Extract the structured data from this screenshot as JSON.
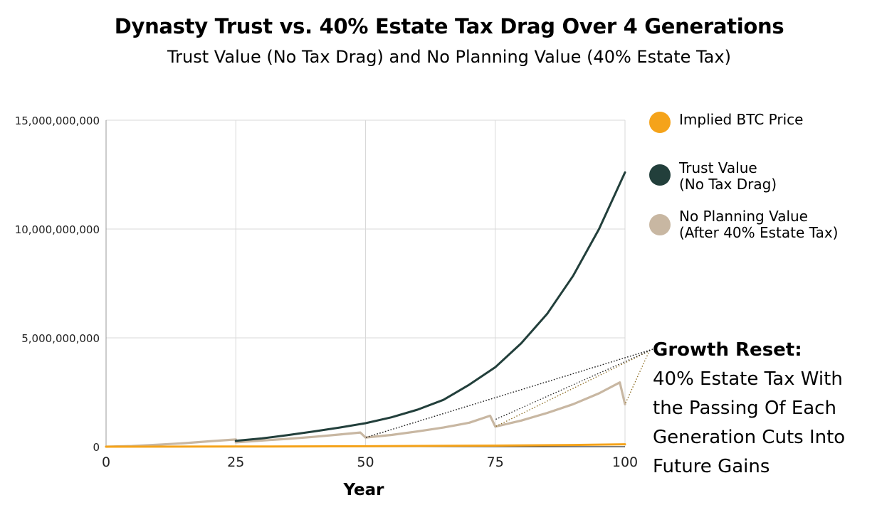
{
  "chart_data": {
    "type": "line",
    "title": "Dynasty Trust vs. 40% Estate Tax Drag Over 4 Generations",
    "subtitle": "Trust Value (No Tax Drag) and No Planning Value (40% Estate Tax)",
    "xlabel": "Year",
    "ylabel": "",
    "xlim": [
      0,
      100
    ],
    "ylim": [
      0,
      15000000000
    ],
    "x_ticks": [
      0,
      25,
      50,
      75,
      100
    ],
    "x_tick_labels": [
      "0",
      "25",
      "50",
      "75",
      "100"
    ],
    "y_ticks": [
      0,
      5000000000,
      10000000000,
      15000000000
    ],
    "y_tick_labels": [
      "0",
      "5,000,000,000",
      "10,000,000,000",
      "15,000,000,000"
    ],
    "grid": true,
    "legend_position": "right",
    "series": [
      {
        "name": "Implied BTC Price",
        "color": "#F5A31A",
        "x": [
          0,
          25,
          50,
          75,
          90,
          100
        ],
        "y": [
          0,
          5000000,
          20000000,
          50000000,
          80000000,
          110000000
        ]
      },
      {
        "name": "Trust Value (No Tax Drag)",
        "color": "#223F3B",
        "x": [
          25,
          30,
          35,
          40,
          45,
          50,
          55,
          60,
          65,
          70,
          75,
          80,
          85,
          90,
          95,
          100
        ],
        "y": [
          270000000,
          380000000,
          530000000,
          700000000,
          880000000,
          1080000000,
          1350000000,
          1700000000,
          2150000000,
          2850000000,
          3650000000,
          4750000000,
          6100000000,
          7850000000,
          10000000000,
          12600000000
        ]
      },
      {
        "name": "No Planning Value (After 40% Estate Tax)",
        "color": "#C8B7A2",
        "x": [
          0,
          5,
          10,
          15,
          20,
          25,
          25.01,
          30,
          35,
          40,
          45,
          49,
          50,
          55,
          60,
          65,
          70,
          74,
          75,
          80,
          85,
          90,
          95,
          99,
          100
        ],
        "y": [
          0,
          30000000,
          90000000,
          160000000,
          250000000,
          330000000,
          200000000,
          280000000,
          360000000,
          450000000,
          560000000,
          650000000,
          420000000,
          540000000,
          700000000,
          880000000,
          1100000000,
          1420000000,
          920000000,
          1200000000,
          1550000000,
          1950000000,
          2450000000,
          2950000000,
          1950000000
        ]
      }
    ],
    "annotations": [
      {
        "label_bold": "Growth Reset:",
        "label_lines": [
          "40% Estate Tax With",
          "the Passing Of Each",
          "Generation Cuts Into",
          "Future Gains"
        ],
        "targets": [
          {
            "x": 50,
            "y": 420000000
          },
          {
            "x": 75,
            "y": 920000000
          },
          {
            "x": 100,
            "y": 1950000000
          }
        ]
      }
    ]
  },
  "legend": {
    "items": [
      {
        "lines": [
          "Implied BTC Price"
        ],
        "color": "#F5A31A"
      },
      {
        "lines": [
          "Trust Value",
          "(No Tax Drag)"
        ],
        "color": "#223F3B"
      },
      {
        "lines": [
          "No Planning Value",
          "(After 40% Estate Tax)"
        ],
        "color": "#C8B7A2"
      }
    ]
  }
}
